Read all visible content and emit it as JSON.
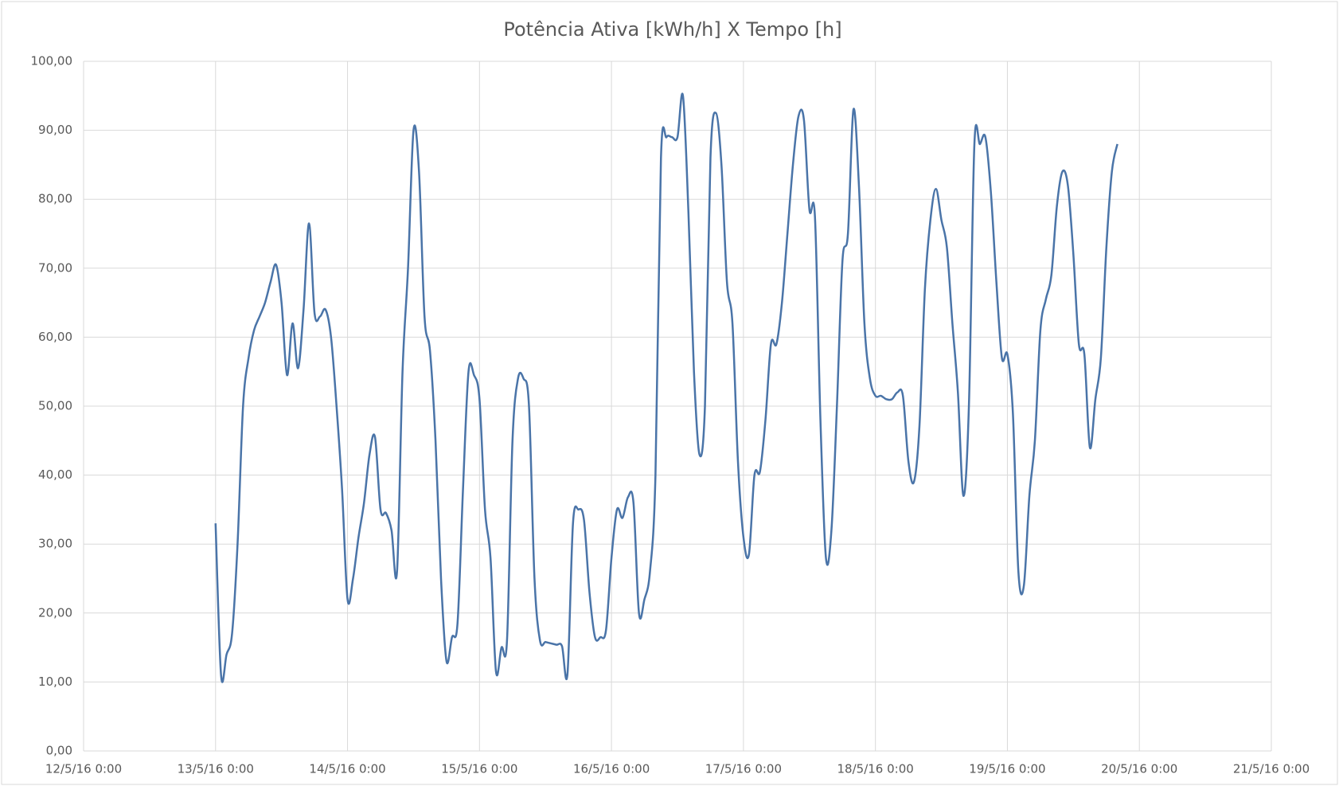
{
  "chart_data": {
    "type": "line",
    "title": "Potência Ativa [kWh/h] X Tempo [h]",
    "x": [
      "2016-05-13T00:00",
      "2016-05-13T01:00",
      "2016-05-13T02:00",
      "2016-05-13T03:00",
      "2016-05-13T04:00",
      "2016-05-13T05:00",
      "2016-05-13T06:00",
      "2016-05-13T07:00",
      "2016-05-13T08:00",
      "2016-05-13T09:00",
      "2016-05-13T10:00",
      "2016-05-13T11:00",
      "2016-05-13T12:00",
      "2016-05-13T13:00",
      "2016-05-13T14:00",
      "2016-05-13T15:00",
      "2016-05-13T16:00",
      "2016-05-13T17:00",
      "2016-05-13T18:00",
      "2016-05-13T19:00",
      "2016-05-13T20:00",
      "2016-05-13T21:00",
      "2016-05-13T22:00",
      "2016-05-13T23:00",
      "2016-05-14T00:00",
      "2016-05-14T01:00",
      "2016-05-14T02:00",
      "2016-05-14T03:00",
      "2016-05-14T04:00",
      "2016-05-14T05:00",
      "2016-05-14T06:00",
      "2016-05-14T07:00",
      "2016-05-14T08:00",
      "2016-05-14T09:00",
      "2016-05-14T10:00",
      "2016-05-14T11:00",
      "2016-05-14T12:00",
      "2016-05-14T13:00",
      "2016-05-14T14:00",
      "2016-05-14T15:00",
      "2016-05-14T16:00",
      "2016-05-14T17:00",
      "2016-05-14T18:00",
      "2016-05-14T19:00",
      "2016-05-14T20:00",
      "2016-05-14T21:00",
      "2016-05-14T22:00",
      "2016-05-14T23:00",
      "2016-05-15T00:00",
      "2016-05-15T01:00",
      "2016-05-15T02:00",
      "2016-05-15T03:00",
      "2016-05-15T04:00",
      "2016-05-15T05:00",
      "2016-05-15T06:00",
      "2016-05-15T07:00",
      "2016-05-15T08:00",
      "2016-05-15T09:00",
      "2016-05-15T10:00",
      "2016-05-15T11:00",
      "2016-05-15T12:00",
      "2016-05-15T13:00",
      "2016-05-15T14:00",
      "2016-05-15T15:00",
      "2016-05-15T16:00",
      "2016-05-15T17:00",
      "2016-05-15T18:00",
      "2016-05-15T19:00",
      "2016-05-15T20:00",
      "2016-05-15T21:00",
      "2016-05-15T22:00",
      "2016-05-15T23:00",
      "2016-05-16T00:00",
      "2016-05-16T01:00",
      "2016-05-16T02:00",
      "2016-05-16T03:00",
      "2016-05-16T04:00",
      "2016-05-16T05:00",
      "2016-05-16T06:00",
      "2016-05-16T07:00",
      "2016-05-16T08:00",
      "2016-05-16T09:00",
      "2016-05-16T10:00",
      "2016-05-16T11:00",
      "2016-05-16T12:00",
      "2016-05-16T13:00",
      "2016-05-16T14:00",
      "2016-05-16T15:00",
      "2016-05-16T16:00",
      "2016-05-16T17:00",
      "2016-05-16T18:00",
      "2016-05-16T19:00",
      "2016-05-16T20:00",
      "2016-05-16T21:00",
      "2016-05-16T22:00",
      "2016-05-16T23:00",
      "2016-05-17T00:00",
      "2016-05-17T01:00",
      "2016-05-17T02:00",
      "2016-05-17T03:00",
      "2016-05-17T04:00",
      "2016-05-17T05:00",
      "2016-05-17T06:00",
      "2016-05-17T07:00",
      "2016-05-17T08:00",
      "2016-05-17T09:00",
      "2016-05-17T10:00",
      "2016-05-17T11:00",
      "2016-05-17T12:00",
      "2016-05-17T13:00",
      "2016-05-17T14:00",
      "2016-05-17T15:00",
      "2016-05-17T16:00",
      "2016-05-17T17:00",
      "2016-05-17T18:00",
      "2016-05-17T19:00",
      "2016-05-17T20:00",
      "2016-05-17T21:00",
      "2016-05-17T22:00",
      "2016-05-17T23:00",
      "2016-05-18T00:00",
      "2016-05-18T01:00",
      "2016-05-18T02:00",
      "2016-05-18T03:00",
      "2016-05-18T04:00",
      "2016-05-18T05:00",
      "2016-05-18T06:00",
      "2016-05-18T07:00",
      "2016-05-18T08:00",
      "2016-05-18T09:00",
      "2016-05-18T10:00",
      "2016-05-18T11:00",
      "2016-05-18T12:00",
      "2016-05-18T13:00",
      "2016-05-18T14:00",
      "2016-05-18T15:00",
      "2016-05-18T16:00",
      "2016-05-18T17:00",
      "2016-05-18T18:00",
      "2016-05-18T19:00",
      "2016-05-18T20:00",
      "2016-05-18T21:00",
      "2016-05-18T22:00",
      "2016-05-18T23:00",
      "2016-05-19T00:00",
      "2016-05-19T01:00",
      "2016-05-19T02:00",
      "2016-05-19T03:00",
      "2016-05-19T04:00",
      "2016-05-19T05:00",
      "2016-05-19T06:00",
      "2016-05-19T07:00",
      "2016-05-19T08:00",
      "2016-05-19T09:00",
      "2016-05-19T10:00",
      "2016-05-19T11:00",
      "2016-05-19T12:00",
      "2016-05-19T13:00",
      "2016-05-19T14:00",
      "2016-05-19T15:00",
      "2016-05-19T16:00",
      "2016-05-19T17:00",
      "2016-05-19T18:00",
      "2016-05-19T19:00",
      "2016-05-19T20:00"
    ],
    "series": [
      {
        "color": "#4a74a8",
        "values": [
          33,
          11,
          14,
          17,
          30,
          50,
          57,
          61,
          63,
          65,
          68,
          70.5,
          65,
          54.5,
          62,
          55.5,
          64,
          76.5,
          63.5,
          63,
          64,
          60,
          50,
          38,
          22,
          25,
          31,
          36,
          43,
          45.5,
          35,
          34.5,
          32,
          26,
          55,
          70,
          90,
          84,
          63,
          58,
          45,
          25,
          13,
          16.5,
          18.5,
          38,
          55,
          54.5,
          51,
          35,
          28,
          11.5,
          15,
          16,
          45,
          54,
          54,
          50,
          25,
          16,
          15.8,
          15.6,
          15.4,
          15.2,
          11.2,
          33,
          35,
          33.5,
          23,
          16.5,
          16.5,
          17.5,
          28,
          35,
          33.8,
          36.8,
          36,
          20,
          22,
          26,
          40,
          86,
          89,
          89,
          89,
          95,
          78,
          55,
          43,
          50,
          86,
          92.5,
          85,
          68,
          62,
          42,
          31,
          28.5,
          40,
          40.5,
          48,
          59,
          59,
          65,
          75,
          85,
          92,
          91.5,
          78.5,
          77.5,
          48,
          28,
          32,
          50,
          71,
          75,
          93,
          82,
          62,
          54,
          51.5,
          51.5,
          51,
          51,
          52,
          51.5,
          42,
          39,
          47,
          67,
          77,
          81.5,
          77,
          73,
          62,
          52,
          37,
          50,
          88,
          88,
          89,
          81,
          68,
          57,
          57.5,
          49,
          26,
          24,
          37,
          45,
          61,
          65.5,
          69,
          79,
          84,
          82,
          72,
          59,
          57.5,
          44,
          51,
          57,
          73,
          84,
          88
        ]
      }
    ],
    "xlim": [
      "2016-05-12T00:00",
      "2016-05-21T00:00"
    ],
    "xticks": [
      {
        "value": "2016-05-12T00:00",
        "label": "12/5/16 0:00"
      },
      {
        "value": "2016-05-13T00:00",
        "label": "13/5/16 0:00"
      },
      {
        "value": "2016-05-14T00:00",
        "label": "14/5/16 0:00"
      },
      {
        "value": "2016-05-15T00:00",
        "label": "15/5/16 0:00"
      },
      {
        "value": "2016-05-16T00:00",
        "label": "16/5/16 0:00"
      },
      {
        "value": "2016-05-17T00:00",
        "label": "17/5/16 0:00"
      },
      {
        "value": "2016-05-18T00:00",
        "label": "18/5/16 0:00"
      },
      {
        "value": "2016-05-19T00:00",
        "label": "19/5/16 0:00"
      },
      {
        "value": "2016-05-20T00:00",
        "label": "20/5/16 0:00"
      },
      {
        "value": "2016-05-21T00:00",
        "label": "21/5/16 0:00"
      }
    ],
    "ylim": [
      0,
      100
    ],
    "yticks": [
      {
        "value": 0,
        "label": "0,00"
      },
      {
        "value": 10,
        "label": "10,00"
      },
      {
        "value": 20,
        "label": "20,00"
      },
      {
        "value": 30,
        "label": "30,00"
      },
      {
        "value": 40,
        "label": "40,00"
      },
      {
        "value": 50,
        "label": "50,00"
      },
      {
        "value": 60,
        "label": "60,00"
      },
      {
        "value": 70,
        "label": "70,00"
      },
      {
        "value": 80,
        "label": "80,00"
      },
      {
        "value": 90,
        "label": "90,00"
      },
      {
        "value": 100,
        "label": "100,00"
      }
    ],
    "grid": true
  }
}
